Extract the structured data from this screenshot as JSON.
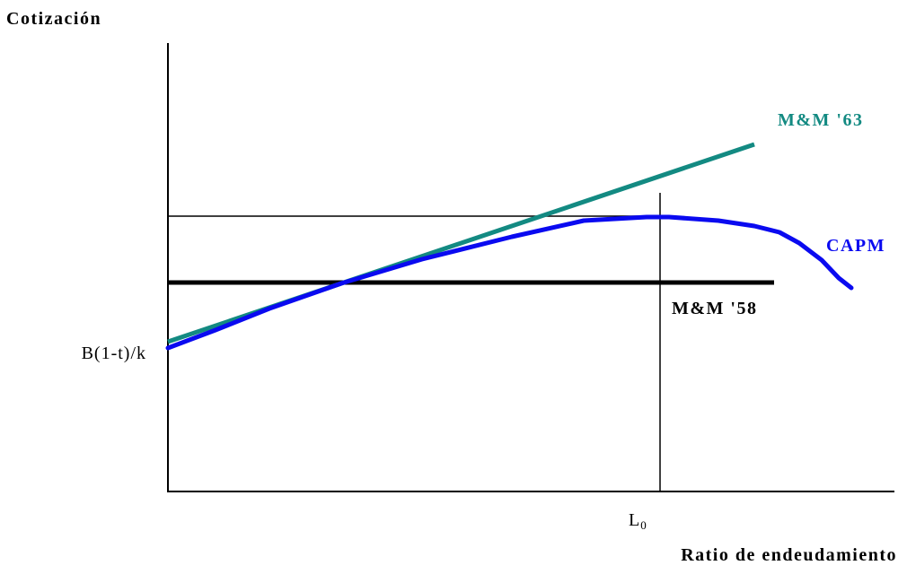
{
  "diagram": {
    "y_axis_label": "Cotización",
    "x_axis_label": "Ratio de endeudamiento",
    "y_intercept_label": "B(1-t)/k",
    "x_marker_label_main": "L",
    "x_marker_label_sub": "0",
    "curves": {
      "mm63": {
        "label": "M&M '63",
        "color": "#138a82"
      },
      "capm": {
        "label": "CAPM",
        "color": "#0a0af0"
      },
      "mm58": {
        "label": "M&M '58",
        "color": "#000000"
      }
    }
  }
}
